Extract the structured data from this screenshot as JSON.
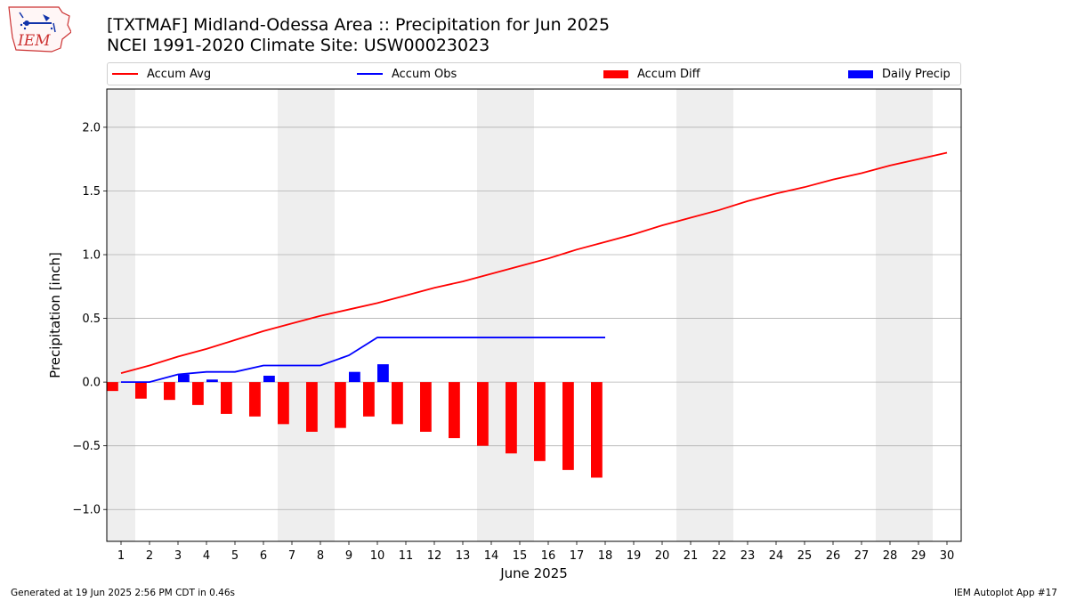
{
  "logo_text": "IEM",
  "title_line1": "[TXTMAF] Midland-Odessa Area :: Precipitation for Jun 2025",
  "title_line2": "NCEI 1991-2020 Climate Site: USW00023023",
  "footer_left": "Generated at 19 Jun 2025 2:56 PM CDT in 0.46s",
  "footer_right": "IEM Autoplot App #17",
  "colors": {
    "avg": "#ff0000",
    "obs": "#0000ff",
    "diff": "#ff0000",
    "daily": "#0000ff",
    "weekend_band": "#eeeeee",
    "grid": "#b0b0b0"
  },
  "chart_data": {
    "type": "bar",
    "xlabel": "June 2025",
    "ylabel": "Precipitation [inch]",
    "ylim": [
      -1.25,
      2.3
    ],
    "xlim": [
      0.5,
      30.5
    ],
    "grid": true,
    "legend_position": "top",
    "legend": [
      "Accum Avg",
      "Accum Obs",
      "Accum Diff",
      "Daily Precip"
    ],
    "y_ticks": [
      -1.0,
      -0.5,
      0.0,
      0.5,
      1.0,
      1.5,
      2.0
    ],
    "y_tick_labels": [
      "−1.0",
      "−0.5",
      "0.0",
      "0.5",
      "1.0",
      "1.5",
      "2.0"
    ],
    "days": [
      1,
      2,
      3,
      4,
      5,
      6,
      7,
      8,
      9,
      10,
      11,
      12,
      13,
      14,
      15,
      16,
      17,
      18,
      19,
      20,
      21,
      22,
      23,
      24,
      25,
      26,
      27,
      28,
      29,
      30
    ],
    "weekend_days": [
      1,
      7,
      8,
      14,
      15,
      21,
      22,
      28,
      29
    ],
    "series": [
      {
        "name": "Accum Avg",
        "style": "line",
        "x": [
          1,
          2,
          3,
          4,
          5,
          6,
          7,
          8,
          9,
          10,
          11,
          12,
          13,
          14,
          15,
          16,
          17,
          18,
          19,
          20,
          21,
          22,
          23,
          24,
          25,
          26,
          27,
          28,
          29,
          30
        ],
        "values": [
          0.07,
          0.13,
          0.2,
          0.26,
          0.33,
          0.4,
          0.46,
          0.52,
          0.57,
          0.62,
          0.68,
          0.74,
          0.79,
          0.85,
          0.91,
          0.97,
          1.04,
          1.1,
          1.16,
          1.23,
          1.29,
          1.35,
          1.42,
          1.48,
          1.53,
          1.59,
          1.64,
          1.7,
          1.75,
          1.8
        ]
      },
      {
        "name": "Accum Obs",
        "style": "line",
        "x": [
          1,
          2,
          3,
          4,
          5,
          6,
          7,
          8,
          9,
          10,
          11,
          12,
          13,
          14,
          15,
          16,
          17,
          18
        ],
        "values": [
          0.0,
          0.0,
          0.06,
          0.08,
          0.08,
          0.13,
          0.13,
          0.13,
          0.21,
          0.35,
          0.35,
          0.35,
          0.35,
          0.35,
          0.35,
          0.35,
          0.35,
          0.35
        ]
      },
      {
        "name": "Accum Diff",
        "style": "bar",
        "x": [
          1,
          2,
          3,
          4,
          5,
          6,
          7,
          8,
          9,
          10,
          11,
          12,
          13,
          14,
          15,
          16,
          17,
          18
        ],
        "values": [
          -0.07,
          -0.13,
          -0.14,
          -0.18,
          -0.25,
          -0.27,
          -0.33,
          -0.39,
          -0.36,
          -0.27,
          -0.33,
          -0.39,
          -0.44,
          -0.5,
          -0.56,
          -0.62,
          -0.69,
          -0.75
        ]
      },
      {
        "name": "Daily Precip",
        "style": "bar",
        "x": [
          1,
          2,
          3,
          4,
          5,
          6,
          7,
          8,
          9,
          10,
          11,
          12,
          13,
          14,
          15,
          16,
          17,
          18
        ],
        "values": [
          0.0,
          0.0,
          0.06,
          0.02,
          0.0,
          0.05,
          0.0,
          0.0,
          0.08,
          0.14,
          0.0,
          0.0,
          0.0,
          0.0,
          0.0,
          0.0,
          0.0,
          0.0
        ]
      }
    ]
  }
}
